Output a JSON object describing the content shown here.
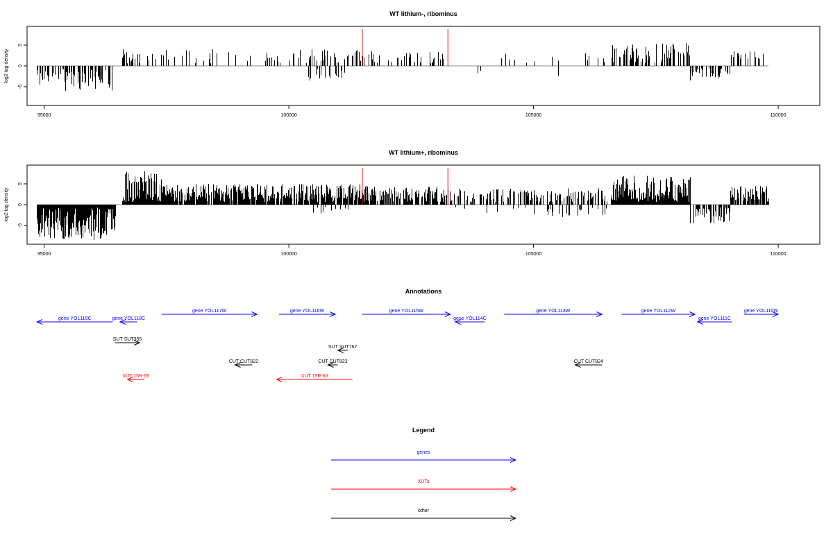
{
  "chart_data": [
    {
      "type": "bar",
      "title": "WT lithium-, ribominus",
      "ylabel": "log2 tag density",
      "xlabel": "",
      "xlim": [
        94650,
        110850
      ],
      "ylim": [
        -9.5,
        9.5
      ],
      "xticks": [
        95000,
        100000,
        105000,
        110000
      ],
      "yticks": [
        -5,
        0,
        5
      ],
      "grid": false,
      "segments": [
        {
          "start": 94850,
          "end": 96400,
          "sign": -1,
          "max": 6,
          "density": 0.55
        },
        {
          "start": 96600,
          "end": 97400,
          "sign": 1,
          "max": 4,
          "density": 0.35
        },
        {
          "start": 97400,
          "end": 100000,
          "sign": 1,
          "max": 4,
          "density": 0.2
        },
        {
          "start": 100000,
          "end": 101500,
          "sign": 1,
          "max": 4,
          "density": 0.4
        },
        {
          "start": 100300,
          "end": 101200,
          "sign": -1,
          "max": 3.5,
          "density": 0.25
        },
        {
          "start": 101500,
          "end": 103200,
          "sign": 1,
          "max": 3.5,
          "density": 0.35
        },
        {
          "start": 103700,
          "end": 104000,
          "sign": -1,
          "max": 2.5,
          "density": 0.2
        },
        {
          "start": 104300,
          "end": 106600,
          "sign": 1,
          "max": 3,
          "density": 0.08
        },
        {
          "start": 105500,
          "end": 105500,
          "sign": -1,
          "max": 2.5,
          "density": 1
        },
        {
          "start": 106600,
          "end": 108200,
          "sign": 1,
          "max": 5.5,
          "density": 0.45
        },
        {
          "start": 108200,
          "end": 109000,
          "sign": -1,
          "max": 3.5,
          "density": 0.45
        },
        {
          "start": 109000,
          "end": 109800,
          "sign": 1,
          "max": 3.5,
          "density": 0.35
        }
      ],
      "markers": [
        101500,
        103250
      ],
      "seed": 11
    },
    {
      "type": "bar",
      "title": "WT lithium+, ribominus",
      "ylabel": "log2 tag density",
      "xlabel": "",
      "xlim": [
        94650,
        110850
      ],
      "ylim": [
        -9.5,
        9.5
      ],
      "xticks": [
        95000,
        100000,
        105000,
        110000
      ],
      "yticks": [
        -5,
        0,
        5
      ],
      "grid": false,
      "segments": [
        {
          "start": 94850,
          "end": 96450,
          "sign": -1,
          "max": 8.5,
          "density": 1.0
        },
        {
          "start": 96600,
          "end": 97400,
          "sign": 1,
          "max": 8,
          "density": 1.0
        },
        {
          "start": 97400,
          "end": 101500,
          "sign": 1,
          "max": 5,
          "density": 0.85
        },
        {
          "start": 100500,
          "end": 101200,
          "sign": -1,
          "max": 3,
          "density": 0.25
        },
        {
          "start": 101500,
          "end": 103300,
          "sign": 1,
          "max": 4.5,
          "density": 0.7
        },
        {
          "start": 103300,
          "end": 106600,
          "sign": 1,
          "max": 4,
          "density": 0.45
        },
        {
          "start": 103400,
          "end": 106500,
          "sign": -1,
          "max": 3,
          "density": 0.12
        },
        {
          "start": 106600,
          "end": 108200,
          "sign": 1,
          "max": 7,
          "density": 1.0
        },
        {
          "start": 108200,
          "end": 109000,
          "sign": -1,
          "max": 4.5,
          "density": 0.6
        },
        {
          "start": 109000,
          "end": 109800,
          "sign": 1,
          "max": 4.5,
          "density": 0.8
        }
      ],
      "markers": [
        101500,
        103250
      ],
      "seed": 23
    }
  ],
  "annotations": {
    "title": "Annotations",
    "xlim": [
      94650,
      110850
    ],
    "features": [
      {
        "label": "gene YOL119C",
        "start": 94850,
        "end": 96400,
        "strand": "-",
        "row": 1,
        "color": "#0000ff"
      },
      {
        "label": "gene YOL118C",
        "start": 96550,
        "end": 96900,
        "strand": "-",
        "row": 1,
        "color": "#0000ff"
      },
      {
        "label": "gene YOL117W",
        "start": 97400,
        "end": 99350,
        "strand": "+",
        "row": 0,
        "color": "#0000ff"
      },
      {
        "label": "gene YOL116W",
        "start": 99800,
        "end": 100950,
        "strand": "+",
        "row": 0,
        "color": "#0000ff"
      },
      {
        "label": "gene YOL115W",
        "start": 101500,
        "end": 103300,
        "strand": "+",
        "row": 0,
        "color": "#0000ff"
      },
      {
        "label": "gene YOL114C",
        "start": 103400,
        "end": 104000,
        "strand": "-",
        "row": 1,
        "color": "#0000ff"
      },
      {
        "label": "gene YOL113W",
        "start": 104400,
        "end": 106400,
        "strand": "+",
        "row": 0,
        "color": "#0000ff"
      },
      {
        "label": "gene YOL112W",
        "start": 106800,
        "end": 108300,
        "strand": "+",
        "row": 0,
        "color": "#0000ff"
      },
      {
        "label": "gene YOL111C",
        "start": 108350,
        "end": 109050,
        "strand": "-",
        "row": 1,
        "color": "#0000ff"
      },
      {
        "label": "gene YOL110W",
        "start": 109300,
        "end": 110000,
        "strand": "+",
        "row": 0,
        "color": "#0000ff"
      },
      {
        "label": "SUT SUT355",
        "start": 96450,
        "end": 96950,
        "strand": "+",
        "row": 2,
        "color": "#000000"
      },
      {
        "label": "SUT SUT767",
        "start": 101000,
        "end": 101200,
        "strand": "-",
        "row": 3,
        "color": "#000000"
      },
      {
        "label": "CUT CUT822",
        "start": 98900,
        "end": 99250,
        "strand": "-",
        "row": 4,
        "color": "#000000"
      },
      {
        "label": "CUT CUT823",
        "start": 100800,
        "end": 100900,
        "strand": "-",
        "row": 4,
        "color": "#000000"
      },
      {
        "label": "CUT CUT824",
        "start": 105850,
        "end": 106400,
        "strand": "-",
        "row": 4,
        "color": "#000000"
      },
      {
        "label": "XUT 15R-65",
        "start": 96700,
        "end": 97050,
        "strand": "-",
        "row": 5,
        "color": "#ff0000"
      },
      {
        "label": "XUT 15R-66",
        "start": 99750,
        "end": 101300,
        "strand": "-",
        "row": 5,
        "color": "#ff0000"
      }
    ]
  },
  "legend": {
    "title": "Legend",
    "items": [
      {
        "label": "genes",
        "color": "#0000ff"
      },
      {
        "label": "XUTs",
        "color": "#ff0000"
      },
      {
        "label": "other",
        "color": "#000000"
      }
    ]
  }
}
